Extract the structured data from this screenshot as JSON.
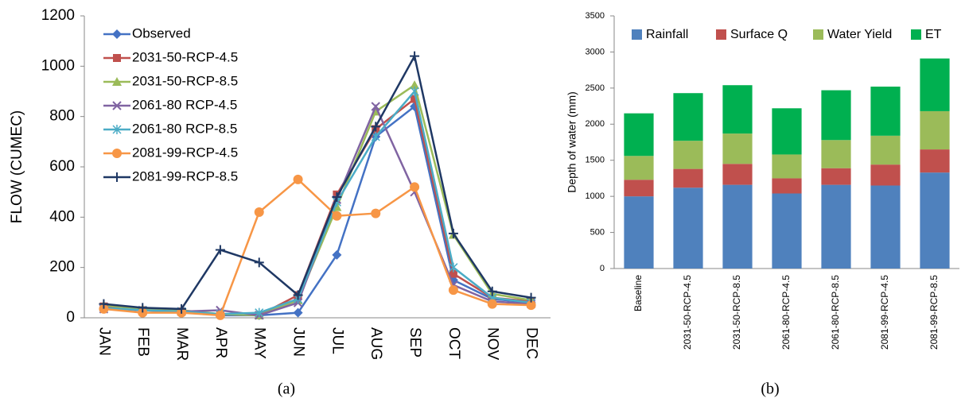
{
  "chart_data": [
    {
      "type": "line",
      "caption": "(a)",
      "y_label": "FLOW (CUMEC)",
      "categories": [
        "JAN",
        "FEB",
        "MAR",
        "APR",
        "MAY",
        "JUN",
        "JUL",
        "AUG",
        "SEP",
        "OCT",
        "NOV",
        "DEC"
      ],
      "ylim": [
        0,
        1200
      ],
      "yticks": [
        0,
        200,
        400,
        600,
        800,
        1000,
        1200
      ],
      "series": [
        {
          "name": "Observed",
          "color": "#4472c4",
          "marker": "diamond",
          "values": [
            40,
            30,
            25,
            10,
            10,
            20,
            250,
            720,
            840,
            150,
            75,
            60
          ]
        },
        {
          "name": "2031-50-RCP-4.5",
          "color": "#c0504d",
          "marker": "square",
          "values": [
            45,
            30,
            25,
            15,
            10,
            90,
            490,
            750,
            870,
            175,
            80,
            65
          ]
        },
        {
          "name": "2031-50-RCP-8.5",
          "color": "#9bbb59",
          "marker": "triangle",
          "values": [
            50,
            35,
            30,
            15,
            10,
            70,
            440,
            820,
            925,
            330,
            95,
            70
          ]
        },
        {
          "name": "2061-80 RCP-4.5",
          "color": "#8064a2",
          "marker": "x",
          "values": [
            35,
            30,
            25,
            30,
            10,
            60,
            470,
            840,
            500,
            130,
            65,
            55
          ]
        },
        {
          "name": "2061-80 RCP-8.5",
          "color": "#4bacc6",
          "marker": "star",
          "values": [
            40,
            30,
            25,
            15,
            20,
            75,
            460,
            720,
            900,
            200,
            80,
            60
          ]
        },
        {
          "name": "2081-99-RCP-4.5",
          "color": "#f79646",
          "marker": "circle",
          "values": [
            35,
            20,
            20,
            10,
            420,
            550,
            405,
            415,
            520,
            110,
            55,
            50
          ]
        },
        {
          "name": "2081-99-RCP-8.5",
          "color": "#1f3864",
          "marker": "plus",
          "values": [
            55,
            40,
            35,
            270,
            220,
            90,
            480,
            760,
            1040,
            335,
            105,
            80
          ]
        }
      ]
    },
    {
      "type": "stacked_bar",
      "caption": "(b)",
      "y_label": "Depth of water (mm)",
      "categories": [
        "Baseline",
        "2031-50-RCP-4.5",
        "2031-50-RCP-8.5",
        "2061-80-RCP-4.5",
        "2061-80-RCP-8.5",
        "2081-99-RCP-4.5",
        "2081-99-RCP-8.5"
      ],
      "ylim": [
        0,
        3500
      ],
      "yticks": [
        0,
        500,
        1000,
        1500,
        2000,
        2500,
        3000,
        3500
      ],
      "series": [
        {
          "name": "Rainfall",
          "color": "#4f81bd",
          "values": [
            1000,
            1120,
            1160,
            1040,
            1160,
            1150,
            1330
          ]
        },
        {
          "name": "Surface Q",
          "color": "#c0504d",
          "values": [
            230,
            260,
            290,
            210,
            230,
            290,
            320
          ]
        },
        {
          "name": "Water Yield",
          "color": "#9bbb59",
          "values": [
            330,
            390,
            420,
            330,
            390,
            400,
            530
          ]
        },
        {
          "name": "ET",
          "color": "#00b050",
          "values": [
            590,
            660,
            670,
            640,
            690,
            680,
            730
          ]
        }
      ]
    }
  ]
}
